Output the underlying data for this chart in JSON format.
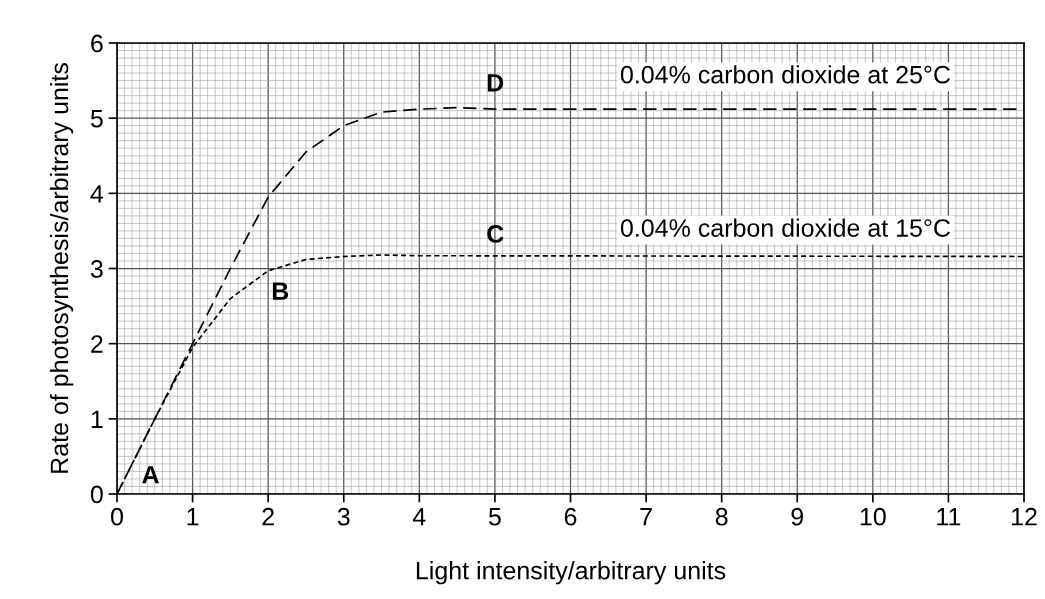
{
  "chart_data": {
    "type": "line",
    "xlabel": "Light intensity/arbitrary units",
    "ylabel": "Rate of photosynthesis/arbitrary units",
    "series": [
      {
        "color": "#000000",
        "line_style": "dashed",
        "x": [
          0,
          0.5,
          1,
          1.5,
          2,
          2.5,
          3,
          3.5,
          4,
          4.5,
          5,
          12
        ],
        "values": [
          0,
          1.0,
          2.0,
          3.0,
          3.95,
          4.55,
          4.9,
          5.08,
          5.12,
          5.14,
          5.12,
          5.12
        ]
      },
      {
        "color": "#000000",
        "line_style": "dotted",
        "x": [
          0,
          0.5,
          1,
          1.5,
          2,
          2.5,
          3,
          3.5,
          4,
          12
        ],
        "values": [
          0,
          1.0,
          1.95,
          2.6,
          2.97,
          3.12,
          3.16,
          3.18,
          3.17,
          3.16
        ]
      }
    ],
    "annotations": [
      "A",
      "B",
      "C",
      "D",
      "0.04% carbon dioxide at 25°C",
      "0.04% carbon dioxide at 15°C"
    ],
    "xlim": [
      0,
      12
    ],
    "xticks": [
      0,
      1,
      2,
      3,
      4,
      5,
      6,
      7,
      8,
      9,
      10,
      11,
      12
    ],
    "ylim": [
      0,
      6
    ],
    "yticks": [
      0,
      1,
      2,
      3,
      4,
      5,
      6
    ],
    "grid": true,
    "legend": false
  }
}
